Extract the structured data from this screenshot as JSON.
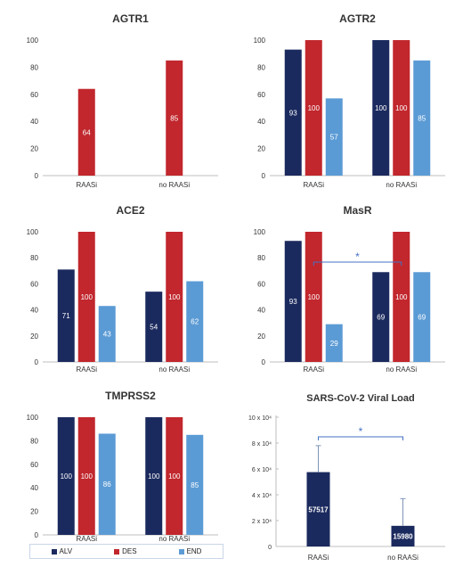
{
  "chart_data": [
    {
      "type": "bar",
      "title": "AGTR1",
      "categories": [
        "RAASi",
        "no RAASi"
      ],
      "ylim": [
        0,
        100
      ],
      "yticks": [
        "0",
        "20",
        "40",
        "60",
        "80",
        "100"
      ],
      "series": [
        {
          "name": "ALV",
          "values": [
            null,
            null
          ]
        },
        {
          "name": "DES",
          "values": [
            64,
            85
          ]
        },
        {
          "name": "END",
          "values": [
            null,
            null
          ]
        }
      ],
      "labels": [
        [
          null,
          null
        ],
        [
          "64",
          "85"
        ],
        [
          null,
          null
        ]
      ]
    },
    {
      "type": "bar",
      "title": "AGTR2",
      "categories": [
        "RAASi",
        "no RAASi"
      ],
      "ylim": [
        0,
        100
      ],
      "yticks": [
        "0",
        "20",
        "40",
        "60",
        "80",
        "100"
      ],
      "series": [
        {
          "name": "ALV",
          "values": [
            93,
            100
          ]
        },
        {
          "name": "DES",
          "values": [
            100,
            100
          ]
        },
        {
          "name": "END",
          "values": [
            57,
            85
          ]
        }
      ],
      "labels": [
        [
          "93",
          "100"
        ],
        [
          "100",
          "100"
        ],
        [
          "57",
          "85"
        ]
      ]
    },
    {
      "type": "bar",
      "title": "ACE2",
      "categories": [
        "RAASi",
        "no RAASi"
      ],
      "ylim": [
        0,
        100
      ],
      "yticks": [
        "0",
        "20",
        "40",
        "60",
        "80",
        "100"
      ],
      "series": [
        {
          "name": "ALV",
          "values": [
            71,
            54
          ]
        },
        {
          "name": "DES",
          "values": [
            100,
            100
          ]
        },
        {
          "name": "END",
          "values": [
            43,
            62
          ]
        }
      ],
      "labels": [
        [
          "71",
          "54"
        ],
        [
          "100",
          "100"
        ],
        [
          "43",
          "62"
        ]
      ]
    },
    {
      "type": "bar",
      "title": "MasR",
      "categories": [
        "RAASi",
        "no RAASi"
      ],
      "ylim": [
        0,
        100
      ],
      "yticks": [
        "0",
        "20",
        "40",
        "60",
        "80",
        "100"
      ],
      "series": [
        {
          "name": "ALV",
          "values": [
            93,
            69
          ]
        },
        {
          "name": "DES",
          "values": [
            100,
            100
          ]
        },
        {
          "name": "END",
          "values": [
            29,
            69
          ]
        }
      ],
      "labels": [
        [
          "93",
          "69"
        ],
        [
          "100",
          "100"
        ],
        [
          "29",
          "69"
        ]
      ],
      "significance": {
        "text": "*",
        "from": 0,
        "to": 1
      }
    },
    {
      "type": "bar",
      "title": "TMPRSS2",
      "categories": [
        "RAASi",
        "no RAASi"
      ],
      "ylim": [
        0,
        100
      ],
      "yticks": [
        "0",
        "20",
        "40",
        "60",
        "80",
        "100"
      ],
      "series": [
        {
          "name": "ALV",
          "values": [
            100,
            100
          ]
        },
        {
          "name": "DES",
          "values": [
            100,
            100
          ]
        },
        {
          "name": "END",
          "values": [
            86,
            85
          ]
        }
      ],
      "labels": [
        [
          "100",
          "100"
        ],
        [
          "100",
          "100"
        ],
        [
          "86",
          "85"
        ]
      ]
    },
    {
      "type": "bar",
      "title": "SARS-CoV-2 Viral Load",
      "categories": [
        "RAASi",
        "no RAASi"
      ],
      "ylim": [
        0,
        100000
      ],
      "yticks": [
        "0",
        "2 x 10⁴",
        "4 x 10⁴",
        "6 x 10⁴",
        "8 x 10⁴",
        "10 x 10⁴"
      ],
      "series": [
        {
          "name": "ALV",
          "values": [
            57517,
            15980
          ]
        }
      ],
      "labels": [
        [
          "57517",
          "15980"
        ]
      ],
      "error_upper": [
        78000,
        37000
      ],
      "significance": {
        "text": "*",
        "from": 0,
        "to": 1
      }
    }
  ],
  "colors": {
    "ALV": "#1b2a5e",
    "DES": "#c1272d",
    "END": "#5b9bd5",
    "axis": "#bfbfbf",
    "text": "#333333",
    "sig": "#4472c4"
  },
  "legend": [
    {
      "key": "ALV",
      "label": "ALV"
    },
    {
      "key": "DES",
      "label": "DES"
    },
    {
      "key": "END",
      "label": "END"
    }
  ]
}
